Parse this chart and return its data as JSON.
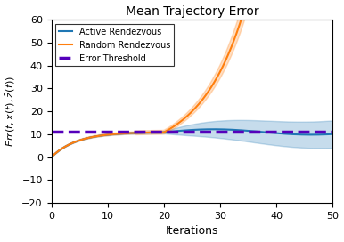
{
  "title": "Mean Trajectory Error",
  "xlabel": "Iterations",
  "ylabel": "$Err(t,x(t),\\bar{z}(t))$",
  "xlim": [
    0,
    50
  ],
  "ylim": [
    -20,
    60
  ],
  "yticks": [
    -20,
    -10,
    0,
    10,
    20,
    30,
    40,
    50,
    60
  ],
  "xticks": [
    0,
    10,
    20,
    30,
    40,
    50
  ],
  "error_threshold": 11.0,
  "active_color": "#1f77b4",
  "random_color": "#ff7f0e",
  "threshold_color": "#5500bb",
  "legend_labels": [
    "Active Rendezvous",
    "Random Rendezvous",
    "Error Threshold"
  ],
  "figsize": [
    3.86,
    2.72
  ],
  "dpi": 100
}
